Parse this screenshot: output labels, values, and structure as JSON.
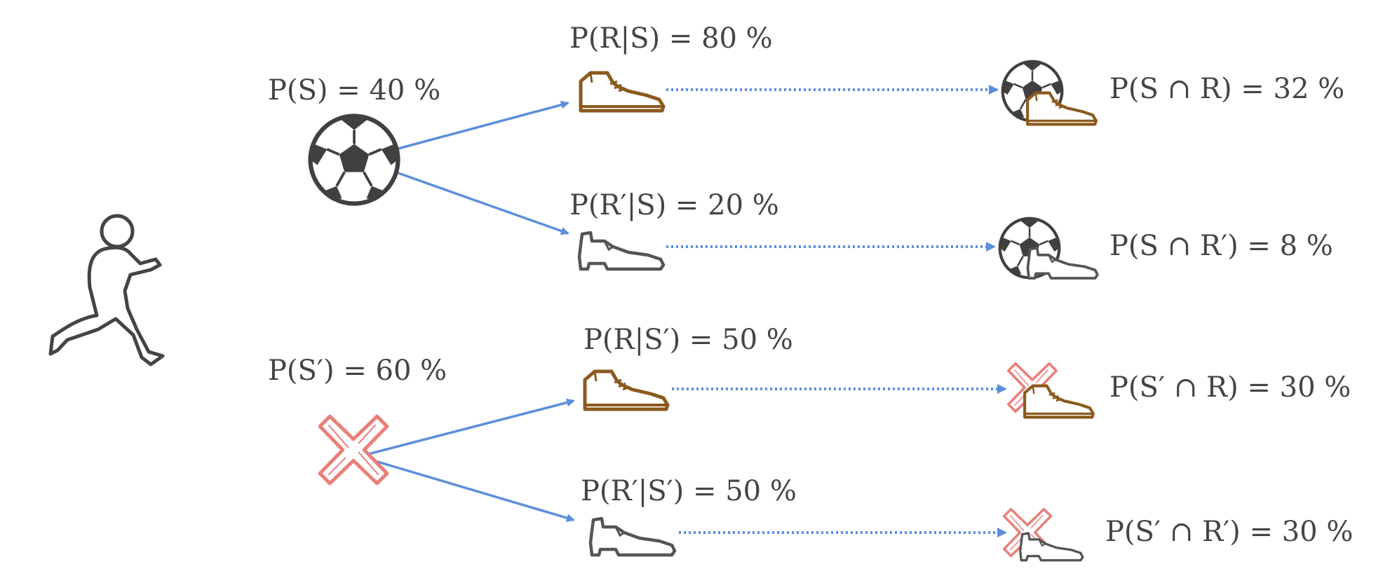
{
  "colors": {
    "branch_line": "#5b8fdc",
    "sneaker": "#8b5a1e",
    "dress_shoe": "#555555",
    "ball": "#404040",
    "cross": "#e8807a",
    "text": "#444444"
  },
  "icons": {
    "runner": "runner-silhouette-icon",
    "ball": "soccer-ball-icon",
    "cross": "cross-icon",
    "sneaker": "sneaker-icon",
    "dress_shoe": "dress-shoe-icon"
  },
  "first_level": [
    {
      "id": "S",
      "label": "P(S) = 40 %"
    },
    {
      "id": "S-prime",
      "label": "P(S′) = 60 %"
    }
  ],
  "second_level": [
    {
      "id": "R-given-S",
      "label": "P(R|S) = 80 %"
    },
    {
      "id": "Rp-given-S",
      "label": "P(R′|S) = 20 %"
    },
    {
      "id": "R-given-Sp",
      "label": "P(R|S′) = 50 %"
    },
    {
      "id": "Rp-given-Sp",
      "label": "P(R′|S′) = 50 %"
    }
  ],
  "outcomes": [
    {
      "id": "S-and-R",
      "label": "P(S ∩ R) = 32 %"
    },
    {
      "id": "S-and-Rp",
      "label": "P(S ∩ R′) = 8 %"
    },
    {
      "id": "Sp-and-R",
      "label": "P(S′ ∩ R) = 30 %"
    },
    {
      "id": "Sp-and-Rp",
      "label": "P(S′ ∩ R′) = 30 %"
    }
  ]
}
